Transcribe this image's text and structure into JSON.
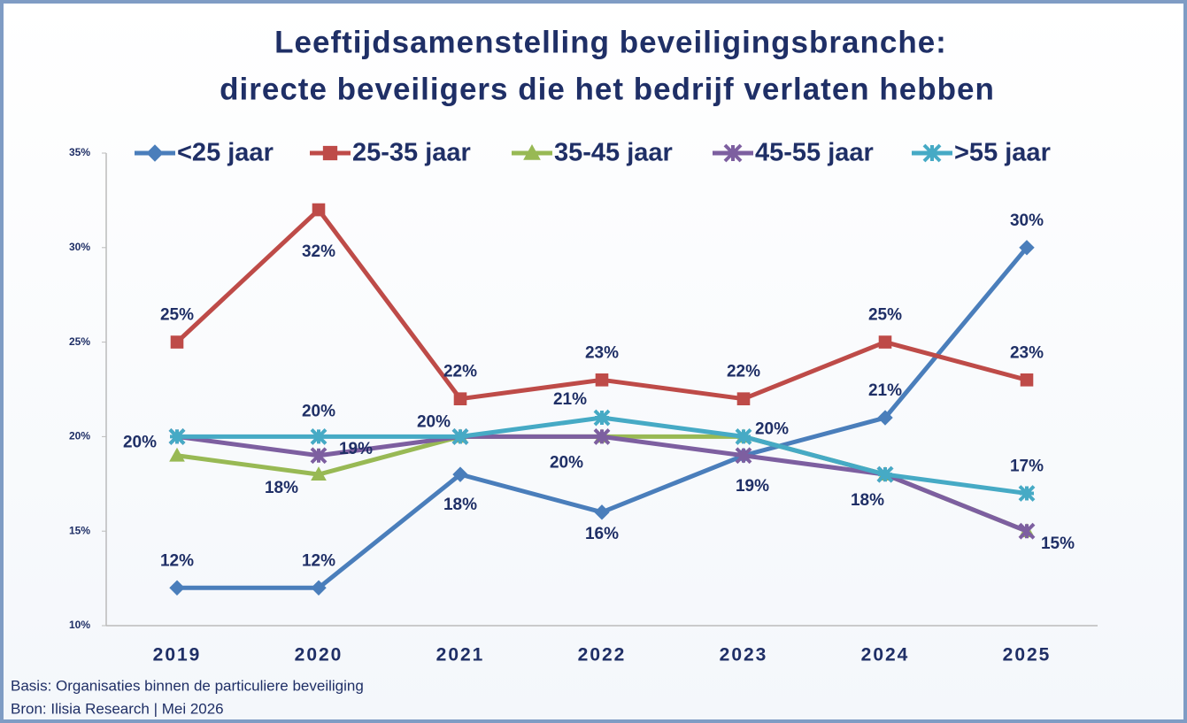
{
  "chart_data": {
    "type": "line",
    "title": "Leeftijdsamenstelling beveiligingsbranche:",
    "subtitle": "directe beveiligers die het bedrijf verlaten hebben",
    "categories": [
      "2019",
      "2020",
      "2021",
      "2022",
      "2023",
      "2024",
      "2025"
    ],
    "series": [
      {
        "name": "<25 jaar",
        "color": "#4a7ebb",
        "values": [
          12,
          12,
          18,
          16,
          19,
          21,
          30
        ],
        "value_labels": [
          "12%",
          "12%",
          "18%",
          "16%",
          null,
          "21%",
          "30%"
        ]
      },
      {
        "name": "25-35 jaar",
        "color": "#be4b48",
        "values": [
          25,
          32,
          22,
          23,
          22,
          25,
          23
        ],
        "value_labels": [
          "25%",
          "32%",
          "22%",
          "23%",
          "22%",
          "25%",
          "23%"
        ]
      },
      {
        "name": "35-45 jaar",
        "color": "#98b954",
        "values": [
          19,
          18,
          20,
          20,
          20,
          18,
          15
        ],
        "value_labels": [
          null,
          "18%",
          null,
          "20%",
          null,
          null,
          null
        ]
      },
      {
        "name": "45-55 jaar",
        "color": "#7d5fa0",
        "values": [
          20,
          19,
          20,
          20,
          19,
          18,
          15
        ],
        "value_labels": [
          null,
          "19%",
          null,
          null,
          "19%",
          null,
          "15%"
        ]
      },
      {
        "name": ">55 jaar",
        "color": "#46aac5",
        "values": [
          20,
          20,
          20,
          21,
          20,
          18,
          17
        ],
        "value_labels": [
          "20%",
          "20%",
          "20%",
          "21%",
          "20%",
          "18%",
          "17%"
        ]
      }
    ],
    "ylim": [
      10,
      35
    ],
    "yticks": [
      {
        "value": 10,
        "label": "10%"
      },
      {
        "value": 15,
        "label": "15%"
      },
      {
        "value": 20,
        "label": "20%"
      },
      {
        "value": 25,
        "label": "25%"
      },
      {
        "value": 30,
        "label": "30%"
      },
      {
        "value": 35,
        "label": "35%"
      }
    ],
    "grid": false,
    "legend": "top",
    "notes": [
      "Basis: Organisaties binnen de particuliere beveiliging",
      "Bron: Ilisia Research | Mei 2026"
    ]
  }
}
